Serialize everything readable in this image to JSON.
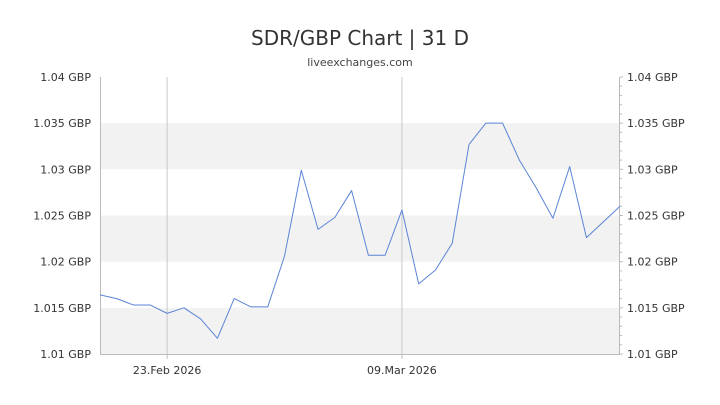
{
  "title": "SDR/GBP Chart | 31 D",
  "subtitle": "liveexchanges.com",
  "colors": {
    "line": "#5b84d6",
    "band": "#f2f2f2",
    "axis": "#bbbbbb",
    "vline": "#c8c8c8"
  },
  "chart_data": {
    "type": "line",
    "title": "SDR/GBP Chart | 31 D",
    "subtitle": "liveexchanges.com",
    "xlabel": "",
    "ylabel": "",
    "ylim": [
      1.01,
      1.04
    ],
    "y_ticks": [
      "1.01 GBP",
      "1.015 GBP",
      "1.02 GBP",
      "1.025 GBP",
      "1.03 GBP",
      "1.035 GBP",
      "1.04 GBP"
    ],
    "x_ticks": [
      {
        "label": "23.Feb 2026",
        "index": 4
      },
      {
        "label": "09.Mar 2026",
        "index": 18
      }
    ],
    "grid": "alternating horizontal bands",
    "series": [
      {
        "values": [
          1.0164,
          1.016,
          1.0153,
          1.0153,
          1.0144,
          1.015,
          1.0138,
          1.0117,
          1.016,
          1.0151,
          1.0151,
          1.0206,
          1.0299,
          1.0235,
          1.0248,
          1.0277,
          1.0207,
          1.0207,
          1.0256,
          1.0176,
          1.0191,
          1.022,
          1.0327,
          1.035,
          1.035,
          1.031,
          1.028,
          1.0247,
          1.0303,
          1.0226,
          1.0243,
          1.026
        ]
      }
    ]
  }
}
